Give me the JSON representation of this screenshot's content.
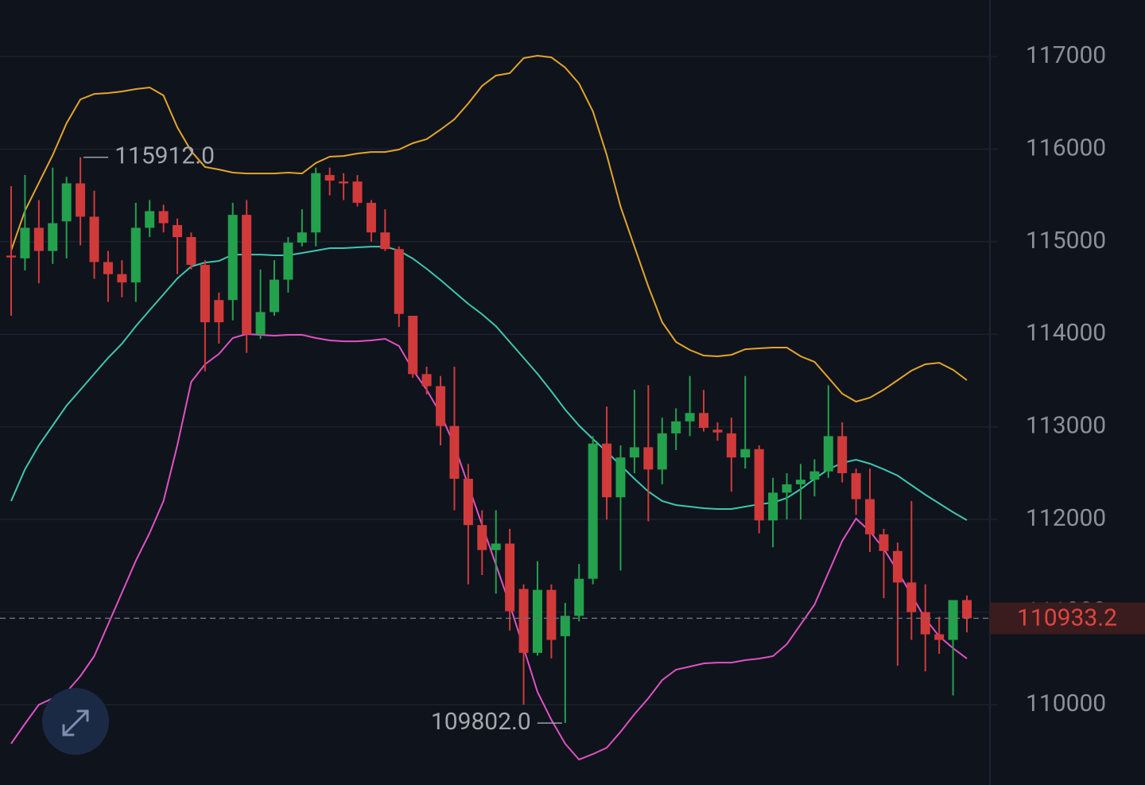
{
  "chart_data": {
    "type": "candlestick",
    "ylim": [
      109133,
      117610
    ],
    "yticks": [
      110000,
      111000,
      112000,
      113000,
      114000,
      115000,
      116000,
      117000
    ],
    "grid": true,
    "up_color": "#23a14d",
    "down_color": "#d13a3a",
    "candles": {
      "open": [
        114850,
        114820,
        115150,
        114900,
        115220,
        115630,
        115270,
        114780,
        114650,
        114560,
        115150,
        115330,
        115180,
        115050,
        114750,
        114370,
        114370,
        115290,
        114000,
        114240,
        114590,
        114990,
        115100,
        115720,
        115650,
        115650,
        115420,
        115100,
        114920,
        114200,
        113570,
        113440,
        113010,
        112440,
        111940,
        111670,
        111740,
        111250,
        110560,
        111240,
        110740,
        110960,
        111360,
        112820,
        112240,
        112670,
        112780,
        112540,
        112930,
        113060,
        113150,
        112970,
        112930,
        112670,
        112760,
        111990,
        112290,
        112380,
        112430,
        112520,
        112900,
        112500,
        112220,
        111840,
        111660,
        111320,
        111000,
        110760,
        110700,
        111130
      ],
      "high": [
        115600,
        115720,
        115450,
        115800,
        115700,
        115912,
        115550,
        114900,
        114800,
        115420,
        115450,
        115400,
        115250,
        115100,
        114800,
        114450,
        115420,
        115450,
        114700,
        114800,
        115050,
        115350,
        115800,
        115800,
        115740,
        115720,
        115450,
        115350,
        114950,
        114200,
        113650,
        113550,
        113650,
        112600,
        112100,
        112100,
        111900,
        111300,
        111550,
        111300,
        111100,
        111520,
        112900,
        113220,
        112800,
        113400,
        113450,
        113100,
        113200,
        113550,
        113400,
        113050,
        113100,
        113550,
        112800,
        112450,
        112500,
        112600,
        112650,
        113450,
        113050,
        112550,
        112550,
        111900,
        111750,
        112200,
        111300,
        110950,
        111130,
        111180
      ],
      "low": [
        114200,
        114690,
        114550,
        114760,
        114820,
        114960,
        114600,
        114350,
        114400,
        114350,
        115050,
        115100,
        114650,
        114700,
        113600,
        113900,
        114150,
        113800,
        113950,
        114200,
        114450,
        114950,
        114950,
        115500,
        115450,
        115380,
        115000,
        114900,
        114080,
        113530,
        113350,
        112800,
        112100,
        111300,
        111400,
        111200,
        110800,
        110000,
        110530,
        110500,
        109802,
        110900,
        111300,
        112000,
        111450,
        112500,
        111980,
        112380,
        112750,
        112900,
        112950,
        112850,
        112300,
        112550,
        111850,
        111700,
        112000,
        112000,
        112250,
        112450,
        112400,
        112050,
        111650,
        111150,
        110420,
        110700,
        110360,
        110550,
        110100,
        110780
      ],
      "close": [
        114830,
        115150,
        114900,
        115200,
        115630,
        115270,
        114780,
        114650,
        114560,
        115150,
        115330,
        115200,
        115050,
        114750,
        114130,
        114130,
        115290,
        114000,
        114240,
        114590,
        114990,
        115100,
        115740,
        115660,
        115630,
        115420,
        115100,
        114920,
        114220,
        113570,
        113440,
        113010,
        112440,
        111940,
        111670,
        111740,
        111010,
        110560,
        111240,
        110700,
        110960,
        111360,
        112820,
        112240,
        112670,
        112780,
        112540,
        112930,
        113060,
        113150,
        112990,
        112940,
        112670,
        112760,
        111990,
        112290,
        112380,
        112430,
        112520,
        112900,
        112500,
        112220,
        111840,
        111660,
        111320,
        111000,
        110760,
        110700,
        111130,
        110933.2
      ]
    },
    "series": [
      {
        "color": "#e2a52a",
        "values": [
          114904,
          115334,
          115634,
          115935,
          116279,
          116536,
          116596,
          116605,
          116622,
          116648,
          116665,
          116579,
          116236,
          115978,
          115806,
          115780,
          115746,
          115737,
          115737,
          115737,
          115746,
          115737,
          115849,
          115918,
          115926,
          115952,
          115969,
          115969,
          115995,
          116064,
          116107,
          116210,
          116322,
          116493,
          116682,
          116794,
          116820,
          116983,
          117009,
          116991,
          116880,
          116708,
          116407,
          115935,
          115377,
          114947,
          114518,
          114131,
          113917,
          113831,
          113771,
          113762,
          113779,
          113839,
          113848,
          113857,
          113857,
          113762,
          113702,
          113531,
          113359,
          113273,
          113316,
          113402,
          113505,
          113608,
          113676,
          113693,
          113616,
          113505
        ]
      },
      {
        "color": "#3ec6b0",
        "values": [
          112199,
          112542,
          112800,
          113015,
          113230,
          113401,
          113573,
          113745,
          113899,
          114088,
          114260,
          114431,
          114603,
          114733,
          114775,
          114792,
          114861,
          114861,
          114861,
          114853,
          114853,
          114878,
          114904,
          114930,
          114930,
          114939,
          114947,
          114947,
          114904,
          114818,
          114707,
          114587,
          114458,
          114329,
          114217,
          114088,
          113917,
          113745,
          113573,
          113384,
          113187,
          113015,
          112869,
          112732,
          112586,
          112440,
          112302,
          112199,
          112156,
          112139,
          112122,
          112113,
          112113,
          112139,
          112165,
          112182,
          112233,
          112328,
          112440,
          112542,
          112611,
          112646,
          112603,
          112542,
          112474,
          112371,
          112268,
          112173,
          112079,
          111993
        ]
      },
      {
        "color": "#de52c2",
        "values": [
          109579,
          109794,
          110000,
          110069,
          110137,
          110309,
          110524,
          110867,
          111211,
          111554,
          111855,
          112199,
          112800,
          113487,
          113676,
          113788,
          113960,
          114003,
          113994,
          113985,
          113994,
          113994,
          113960,
          113934,
          113925,
          113925,
          113934,
          113951,
          113874,
          113616,
          113401,
          113144,
          112800,
          112371,
          111941,
          111512,
          111082,
          110610,
          110137,
          109837,
          109579,
          109407,
          109467,
          109536,
          109708,
          109897,
          110069,
          110266,
          110378,
          110412,
          110446,
          110455,
          110455,
          110481,
          110498,
          110524,
          110653,
          110867,
          111082,
          111425,
          111769,
          112009,
          111872,
          111683,
          111442,
          111185,
          110927,
          110739,
          110610,
          110498
        ]
      }
    ],
    "annotations": [
      {
        "value": 115912,
        "label": "115912.0"
      },
      {
        "value": 109802,
        "label": "109802.0"
      }
    ],
    "last_price": {
      "value": 110933.2,
      "label": "110933.2"
    }
  }
}
